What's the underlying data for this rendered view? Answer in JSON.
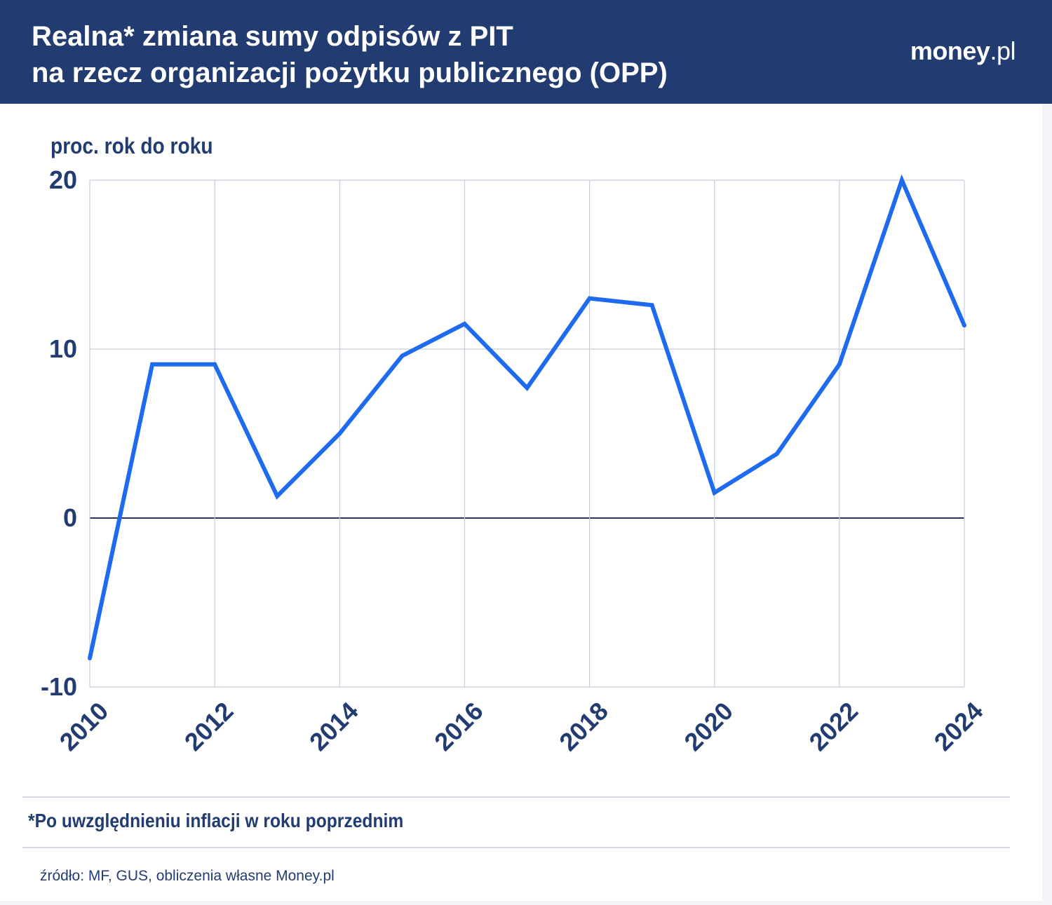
{
  "header": {
    "title_line1": "Realna* zmiana sumy odpisów z PIT",
    "title_line2": "na rzecz organizacji pożytku publicznego (OPP)",
    "logo_main": "money",
    "logo_suffix": ".pl"
  },
  "footnote": "*Po uwzględnieniu inflacji w roku poprzednim",
  "source": "źródło: MF, GUS, obliczenia własne Money.pl",
  "colors": {
    "header_bg": "#223c72",
    "line": "#1f6bf0",
    "text": "#223c72",
    "grid": "#c8cdd8",
    "zero_line": "#2b3550"
  },
  "chart_data": {
    "type": "line",
    "title": "Realna* zmiana sumy odpisów z PIT na rzecz organizacji pożytku publicznego (OPP)",
    "ylabel": "proc. rok do roku",
    "xlabel": "",
    "x": [
      2010,
      2011,
      2012,
      2013,
      2014,
      2015,
      2016,
      2017,
      2018,
      2019,
      2020,
      2021,
      2022,
      2023,
      2024
    ],
    "series": [
      {
        "name": "Realna zmiana sumy odpisów",
        "values": [
          -8.3,
          9.1,
          9.1,
          1.3,
          5.0,
          9.6,
          11.5,
          7.7,
          13.0,
          12.6,
          1.5,
          3.8,
          9.1,
          20.0,
          11.4
        ]
      }
    ],
    "xlim": [
      2010,
      2024
    ],
    "ylim": [
      -10,
      20
    ],
    "xticks": [
      "2010",
      "2012",
      "2014",
      "2016",
      "2018",
      "2020",
      "2022",
      "2024"
    ],
    "yticks": [
      "20",
      "10",
      "0",
      "-10"
    ],
    "grid": true
  }
}
